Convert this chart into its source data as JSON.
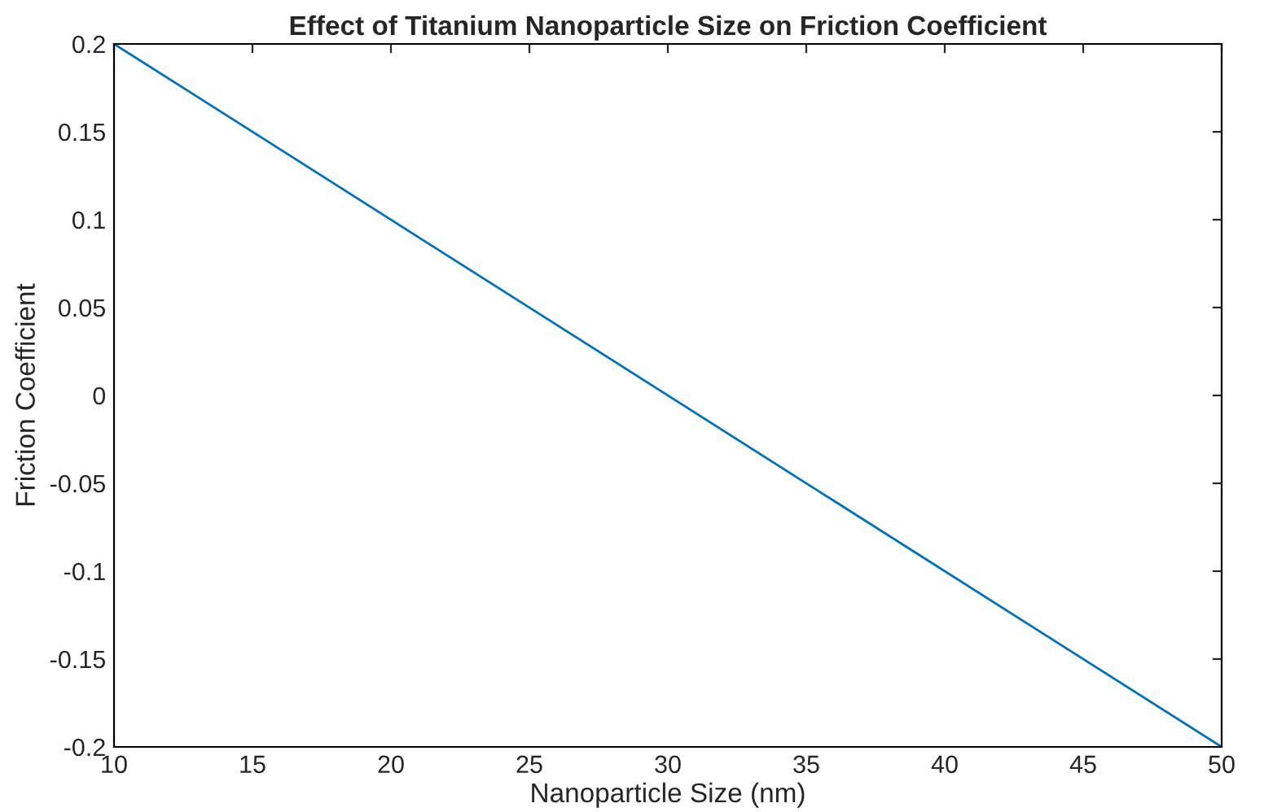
{
  "chart_data": {
    "type": "line",
    "title": "Effect of Titanium Nanoparticle Size on Friction Coefficient",
    "xlabel": "Nanoparticle Size (nm)",
    "ylabel": "Friction Coefficient",
    "x": [
      10,
      50
    ],
    "series": [
      {
        "color": "#0072bd",
        "values": [
          0.2,
          -0.2
        ]
      }
    ],
    "xlim": [
      10,
      50
    ],
    "xticks": [
      10,
      15,
      20,
      25,
      30,
      35,
      40,
      45,
      50
    ],
    "ylim": [
      -0.2,
      0.2
    ],
    "yticks": [
      {
        "value": -0.2,
        "label": "-0.2"
      },
      {
        "value": -0.15,
        "label": "-0.15"
      },
      {
        "value": -0.1,
        "label": "-0.1"
      },
      {
        "value": -0.05,
        "label": "-0.05"
      },
      0,
      0.05,
      0.1,
      0.15,
      0.2
    ],
    "line_style": "solid"
  }
}
